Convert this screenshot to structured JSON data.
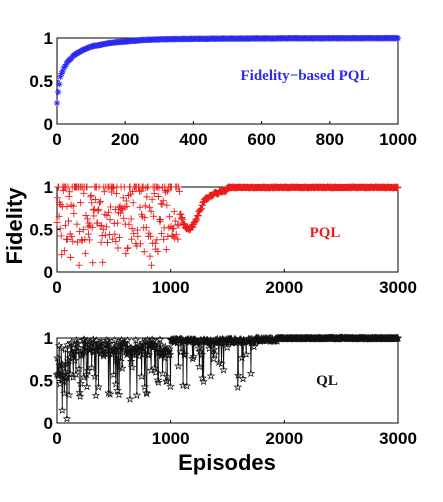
{
  "figure": {
    "ylabel": "Fidelity",
    "xlabel": "Episodes"
  },
  "chart_data": [
    {
      "type": "scatter",
      "annotation": "Fidelity−based PQL",
      "color": "#2b2bef",
      "marker": "asterisk",
      "xlim": [
        0,
        1000
      ],
      "ylim": [
        0,
        1
      ],
      "xticks": [
        "0",
        "200",
        "400",
        "600",
        "800",
        "1000"
      ],
      "yticks": [
        "0",
        "0.5",
        "1"
      ],
      "grid": false,
      "trend": {
        "x": [
          0,
          5,
          10,
          20,
          30,
          50,
          75,
          100,
          150,
          200,
          250,
          300,
          400,
          500,
          600,
          800,
          1000
        ],
        "y": [
          0.25,
          0.42,
          0.55,
          0.65,
          0.72,
          0.8,
          0.86,
          0.9,
          0.94,
          0.96,
          0.975,
          0.985,
          0.99,
          0.993,
          0.995,
          0.997,
          0.998
        ]
      }
    },
    {
      "type": "scatter",
      "annotation": "PQL",
      "color": "#ef1a1a",
      "marker": "plus",
      "xlim": [
        0,
        3000
      ],
      "ylim": [
        0,
        1
      ],
      "xticks": [
        "0",
        "1000",
        "2000",
        "3000"
      ],
      "yticks": [
        "0",
        "0.5",
        "1"
      ],
      "grid": false,
      "trend": {
        "x": [
          0,
          200,
          400,
          600,
          800,
          1000,
          1080,
          1120,
          1160,
          1200,
          1250,
          1300,
          1400,
          1500,
          1600,
          2000,
          3000
        ],
        "y": [
          0.75,
          0.78,
          0.76,
          0.77,
          0.78,
          0.8,
          0.7,
          0.55,
          0.5,
          0.55,
          0.7,
          0.85,
          0.93,
          0.97,
          0.99,
          1.0,
          1.0
        ]
      }
    },
    {
      "type": "scatter",
      "annotation": "QL",
      "color": "#111111",
      "marker": "star",
      "xlim": [
        0,
        3000
      ],
      "ylim": [
        0,
        1
      ],
      "xticks": [
        "0",
        "1000",
        "2000",
        "3000"
      ],
      "yticks": [
        "0",
        "0.5",
        "1"
      ],
      "grid": false,
      "trend": {
        "x": [
          0,
          50,
          200,
          400,
          600,
          800,
          1000,
          1100,
          1300,
          1500,
          1700,
          1800,
          2000,
          2500,
          3000
        ],
        "y": [
          0.55,
          0.7,
          0.85,
          0.9,
          0.92,
          0.93,
          0.95,
          0.97,
          0.98,
          0.98,
          0.97,
          0.98,
          1.0,
          1.0,
          1.0
        ]
      }
    }
  ]
}
